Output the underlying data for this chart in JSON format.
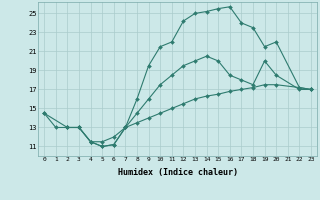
{
  "xlabel": "Humidex (Indice chaleur)",
  "background_color": "#cce8e8",
  "grid_color": "#aacccc",
  "line_color": "#2e7b6f",
  "xlim": [
    -0.5,
    23.5
  ],
  "ylim": [
    10.0,
    26.2
  ],
  "yticks": [
    11,
    13,
    15,
    17,
    19,
    21,
    23,
    25
  ],
  "xticks": [
    0,
    1,
    2,
    3,
    4,
    5,
    6,
    7,
    8,
    9,
    10,
    11,
    12,
    13,
    14,
    15,
    16,
    17,
    18,
    19,
    20,
    21,
    22,
    23
  ],
  "line1_x": [
    0,
    1,
    2,
    3,
    4,
    5,
    6,
    7,
    8,
    9,
    10,
    11,
    12,
    13,
    14,
    15,
    16,
    17,
    18,
    19,
    20,
    22,
    23
  ],
  "line1_y": [
    14.5,
    13.0,
    13.0,
    13.0,
    11.5,
    11.0,
    11.2,
    13.0,
    16.0,
    19.5,
    21.5,
    22.0,
    24.2,
    25.0,
    25.2,
    25.5,
    25.7,
    24.0,
    23.5,
    21.5,
    22.0,
    17.2,
    17.0
  ],
  "line2_x": [
    2,
    3,
    4,
    5,
    6,
    7,
    8,
    9,
    10,
    11,
    12,
    13,
    14,
    15,
    16,
    17,
    18,
    19,
    20,
    22,
    23
  ],
  "line2_y": [
    13.0,
    13.0,
    11.5,
    11.0,
    11.2,
    13.0,
    14.5,
    16.0,
    17.5,
    18.5,
    19.5,
    20.0,
    20.5,
    20.0,
    18.5,
    18.0,
    17.5,
    20.0,
    18.5,
    17.0,
    17.0
  ],
  "line3_x": [
    0,
    2,
    3,
    4,
    5,
    6,
    7,
    8,
    9,
    10,
    11,
    12,
    13,
    14,
    15,
    16,
    17,
    18,
    19,
    20,
    22,
    23
  ],
  "line3_y": [
    14.5,
    13.0,
    13.0,
    11.5,
    11.5,
    12.0,
    13.0,
    13.5,
    14.0,
    14.5,
    15.0,
    15.5,
    16.0,
    16.3,
    16.5,
    16.8,
    17.0,
    17.2,
    17.5,
    17.5,
    17.2,
    17.0
  ]
}
